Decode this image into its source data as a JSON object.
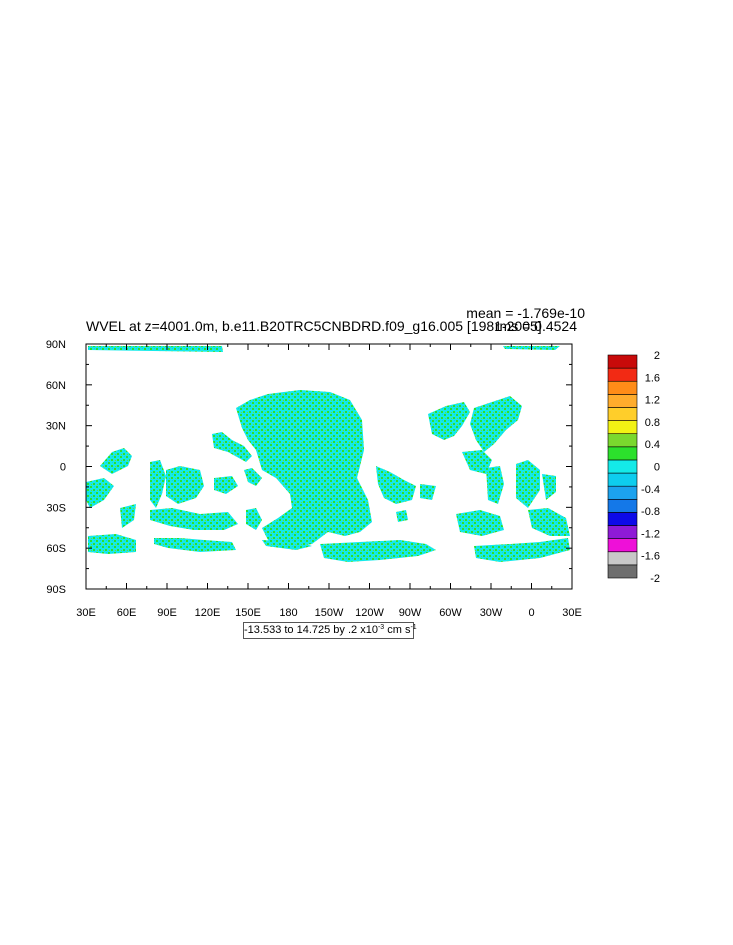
{
  "chart_data": {
    "type": "heatmap",
    "title": "WVEL at z=4001.0m, b.e11.B20TRC5CNBDRD.f09_g16.005 [1981-2005]",
    "stats": {
      "mean": "mean = -1.769e-10",
      "rms": "rms = 0.4524"
    },
    "x_axis": {
      "ticks": [
        "30E",
        "60E",
        "90E",
        "120E",
        "150E",
        "180",
        "150W",
        "120W",
        "90W",
        "60W",
        "30W",
        "0",
        "30E"
      ],
      "range": [
        30,
        390
      ]
    },
    "y_axis": {
      "ticks": [
        "90S",
        "60S",
        "30S",
        "0",
        "30N",
        "60N",
        "90N"
      ],
      "range": [
        -90,
        90
      ]
    },
    "contour_info": {
      "prefix": "-13.533 to 14.725 by .2 x10",
      "exponent": "-3",
      "units": " cm s",
      "units_exp": "-1"
    },
    "colorbar": {
      "levels": [
        "-2",
        "-1.6",
        "-1.2",
        "-0.8",
        "-0.4",
        "0",
        "0.4",
        "0.8",
        "1.2",
        "1.6",
        "2"
      ],
      "colors": [
        "#6e6e6e",
        "#c8c8c8",
        "#ee10d8",
        "#8e1ad6",
        "#0d0ae8",
        "#1478e8",
        "#1ca2ee",
        "#0ecdee",
        "#14eae8",
        "#2ce02c",
        "#7ad82e",
        "#f2f214",
        "#ffce2a",
        "#ffac2c",
        "#ff8c18",
        "#f22a14",
        "#c80a0a"
      ]
    },
    "dominant_colors": [
      "#14eae8",
      "#2ce02c"
    ]
  }
}
